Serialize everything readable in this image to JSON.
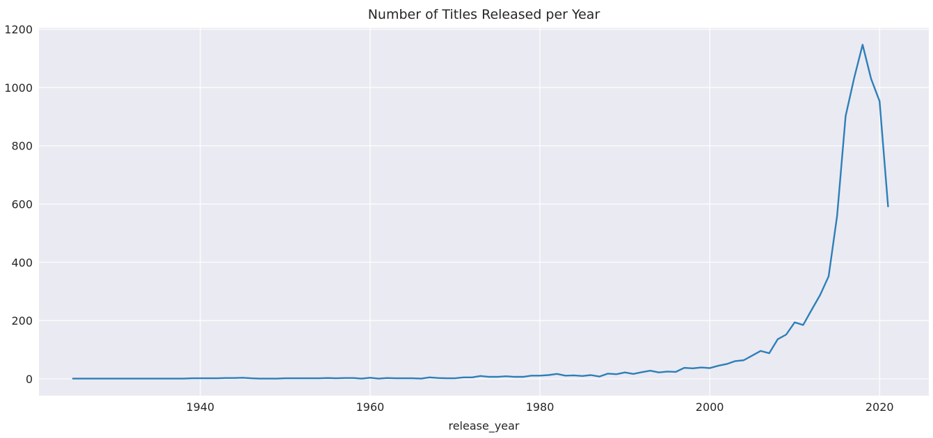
{
  "chart_data": {
    "type": "line",
    "title": "Number of Titles Released per Year",
    "xlabel": "release_year",
    "ylabel": "",
    "grid": true,
    "xlim": [
      1921,
      2025.8
    ],
    "ylim": [
      -57.4,
      1205
    ],
    "x_ticks": [
      1940,
      1960,
      1980,
      2000,
      2020
    ],
    "y_ticks": [
      0,
      200,
      400,
      600,
      800,
      1000,
      1200
    ],
    "colors": {
      "background": "#eaeaf2",
      "grid": "#ffffff",
      "line": "#2c7fb8",
      "text": "#262626"
    },
    "series": [
      {
        "x": [
          1925,
          1926,
          1927,
          1928,
          1929,
          1930,
          1931,
          1932,
          1933,
          1934,
          1935,
          1936,
          1937,
          1938,
          1939,
          1940,
          1941,
          1942,
          1943,
          1944,
          1945,
          1946,
          1947,
          1948,
          1949,
          1950,
          1951,
          1952,
          1953,
          1954,
          1955,
          1956,
          1957,
          1958,
          1959,
          1960,
          1961,
          1962,
          1963,
          1964,
          1965,
          1966,
          1967,
          1968,
          1969,
          1970,
          1971,
          1972,
          1973,
          1974,
          1975,
          1976,
          1977,
          1978,
          1979,
          1980,
          1981,
          1982,
          1983,
          1984,
          1985,
          1986,
          1987,
          1988,
          1989,
          1990,
          1991,
          1992,
          1993,
          1994,
          1995,
          1996,
          1997,
          1998,
          1999,
          2000,
          2001,
          2002,
          2003,
          2004,
          2005,
          2006,
          2007,
          2008,
          2009,
          2010,
          2011,
          2012,
          2013,
          2014,
          2015,
          2016,
          2017,
          2018,
          2019,
          2020,
          2021
        ],
        "values": [
          1,
          1,
          1,
          1,
          1,
          1,
          1,
          1,
          1,
          1,
          1,
          1,
          1,
          1,
          2,
          2,
          2,
          2,
          3,
          3,
          4,
          2,
          1,
          1,
          1,
          2,
          2,
          2,
          2,
          2,
          3,
          2,
          3,
          3,
          1,
          4,
          1,
          3,
          2,
          2,
          2,
          1,
          5,
          3,
          2,
          2,
          5,
          5,
          10,
          7,
          7,
          9,
          7,
          7,
          11,
          11,
          13,
          17,
          11,
          12,
          10,
          13,
          8,
          18,
          16,
          22,
          17,
          23,
          28,
          22,
          25,
          24,
          38,
          36,
          39,
          37,
          45,
          51,
          61,
          64,
          80,
          96,
          88,
          136,
          152,
          194,
          185,
          237,
          288,
          352,
          560,
          902,
          1032,
          1147,
          1030,
          953,
          592
        ]
      }
    ]
  }
}
